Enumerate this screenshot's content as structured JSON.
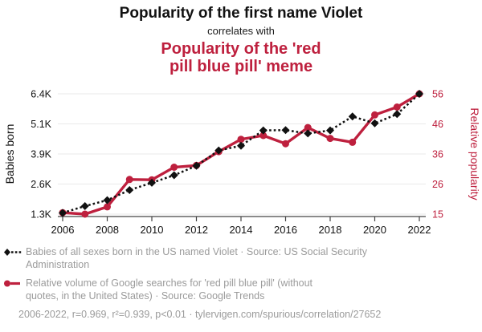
{
  "colors": {
    "accent_red": "#be203e",
    "series_black": "#111111",
    "text_gray": "#9b9b9b",
    "grid": "#eaeaea",
    "axis": "#444444"
  },
  "chart_data": {
    "type": "line",
    "title_top": "Popularity of the first name Violet",
    "connector": "correlates with",
    "title_bottom_lines": [
      "Popularity of the 'red",
      "pill blue pill' meme"
    ],
    "x": [
      2006,
      2007,
      2008,
      2009,
      2010,
      2011,
      2012,
      2013,
      2014,
      2015,
      2016,
      2017,
      2018,
      2019,
      2020,
      2021,
      2022
    ],
    "x_ticks": [
      "2006",
      "2008",
      "2010",
      "2012",
      "2014",
      "2016",
      "2018",
      "2020",
      "2022"
    ],
    "series": [
      {
        "name": "Babies of all sexes born in the US named Violet",
        "source": "US Social Security Administration",
        "axis": "left",
        "style": "dotted-diamond",
        "color": "#111111",
        "values": [
          1350,
          1640,
          1890,
          2320,
          2630,
          2950,
          3350,
          4000,
          4200,
          4850,
          4860,
          4720,
          4850,
          5440,
          5150,
          5540,
          6400
        ]
      },
      {
        "name": "Relative volume of Google searches for 'red pill blue pill'",
        "source": "Google Trends",
        "axis": "right",
        "style": "solid-circle",
        "color": "#be203e",
        "values": [
          15.5,
          15,
          17.5,
          26.8,
          26.7,
          31,
          31.6,
          36.3,
          40.5,
          41.8,
          39,
          44.5,
          40.8,
          39.5,
          48.8,
          51.5,
          56
        ]
      }
    ],
    "left_axis": {
      "label": "Babies born",
      "min": 1300,
      "max": 6400,
      "ticks_top_to_bottom": [
        "6.4K",
        "5.1K",
        "3.9K",
        "2.6K",
        "1.3K"
      ]
    },
    "right_axis": {
      "label": "Relative popularity",
      "min": 15,
      "max": 56,
      "ticks_top_to_bottom": [
        "56",
        "46",
        "36",
        "26",
        "15"
      ]
    },
    "grid": true,
    "legend_position": "bottom-left",
    "legend": [
      {
        "lines": [
          "Babies of all sexes born in the US named Violet · Source: US Social Security",
          "Administration"
        ]
      },
      {
        "lines": [
          "Relative volume of Google searches for 'red pill blue pill' (without",
          "quotes, in the United States) · Source: Google Trends"
        ]
      }
    ],
    "footnote": "2006-2022, r=0.969, r²=0.939, p<0.01 · tylervigen.com/spurious/correlation/27652"
  }
}
